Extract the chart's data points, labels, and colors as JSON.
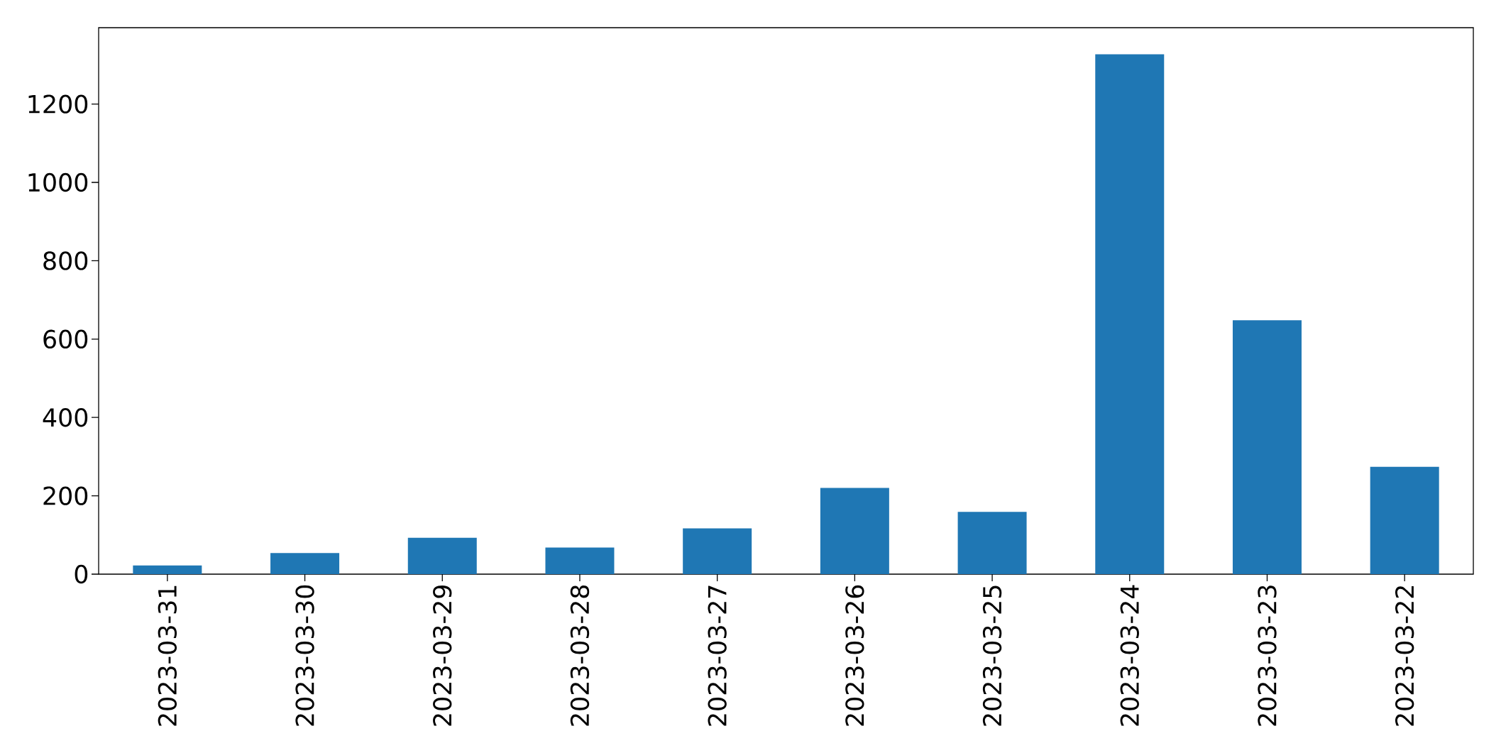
{
  "chart_data": {
    "type": "bar",
    "categories": [
      "2023-03-31",
      "2023-03-30",
      "2023-03-29",
      "2023-03-28",
      "2023-03-27",
      "2023-03-26",
      "2023-03-25",
      "2023-03-24",
      "2023-03-23",
      "2023-03-22"
    ],
    "values": [
      22,
      54,
      93,
      68,
      117,
      220,
      159,
      1327,
      648,
      274
    ],
    "color": "#1f77b4",
    "ylim": [
      0,
      1395
    ],
    "yticks": [
      0,
      200,
      400,
      600,
      800,
      1000,
      1200
    ],
    "grid": false
  }
}
